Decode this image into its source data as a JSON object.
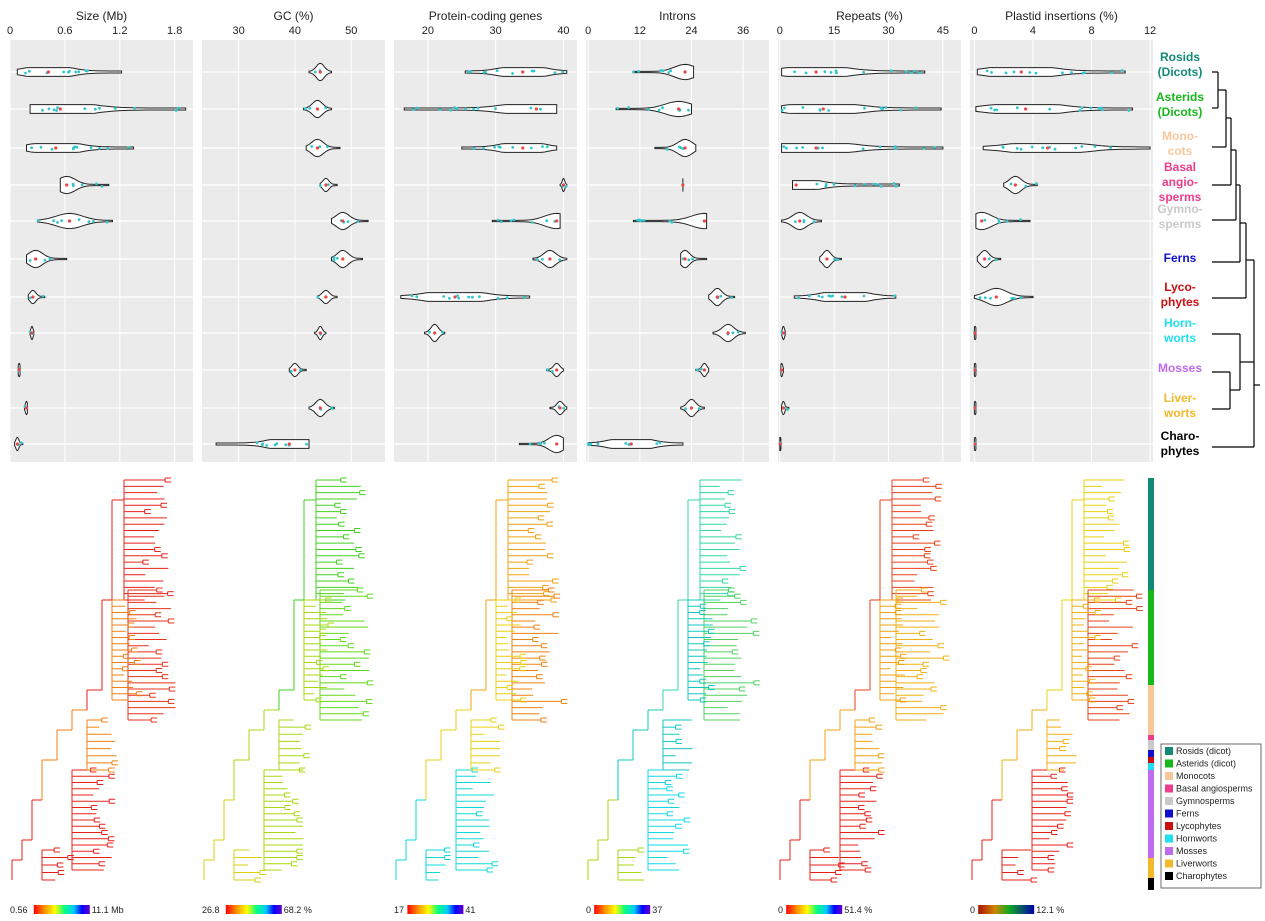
{
  "figure": {
    "groups": [
      {
        "name": "Rosids (Dicots)",
        "lines": [
          "Rosids",
          "(Dicots)"
        ],
        "color": "#128A75"
      },
      {
        "name": "Asterids (Dicots)",
        "lines": [
          "Asterids",
          "(Dicots)"
        ],
        "color": "#16B81B"
      },
      {
        "name": "Monocots",
        "lines": [
          "Mono-",
          "cots"
        ],
        "color": "#F7C79C"
      },
      {
        "name": "Basal angiosperms",
        "lines": [
          "Basal",
          "angio-",
          "sperms"
        ],
        "color": "#EE3C8A"
      },
      {
        "name": "Gymnosperms",
        "lines": [
          "Gymno-",
          "sperms"
        ],
        "color": "#C9C9C9"
      },
      {
        "name": "Ferns",
        "lines": [
          "Ferns"
        ],
        "color": "#1010CC"
      },
      {
        "name": "Lycophytes",
        "lines": [
          "Lyco-",
          "phytes"
        ],
        "color": "#CC1010"
      },
      {
        "name": "Hornworts",
        "lines": [
          "Horn-",
          "worts"
        ],
        "color": "#1EE0EE"
      },
      {
        "name": "Mosses",
        "lines": [
          "Mosses"
        ],
        "color": "#C06AEE"
      },
      {
        "name": "Liverworts",
        "lines": [
          "Liver-",
          "worts"
        ],
        "color": "#F2B92A"
      },
      {
        "name": "Charophytes",
        "lines": [
          "Charo-",
          "phytes"
        ],
        "color": "#000000"
      }
    ],
    "legend": [
      {
        "label": "Rosids (dicot)",
        "color": "#128A75"
      },
      {
        "label": "Asterids (dicot)",
        "color": "#16B81B"
      },
      {
        "label": "Monocots",
        "color": "#F7C79C"
      },
      {
        "label": "Basal angiosperms",
        "color": "#EE3C8A"
      },
      {
        "label": "Gymnosperms",
        "color": "#C9C9C9"
      },
      {
        "label": "Ferns",
        "color": "#1010CC"
      },
      {
        "label": "Lycophytes",
        "color": "#CC1010"
      },
      {
        "label": "Hornworts",
        "color": "#1EE0EE"
      },
      {
        "label": "Mosses",
        "color": "#C06AEE"
      },
      {
        "label": "Liverworts",
        "color": "#F2B92A"
      },
      {
        "label": "Charophytes",
        "color": "#000000"
      }
    ],
    "colorbars": [
      {
        "min_label": "0.56",
        "max_label": "11.1 Mb",
        "scheme": "rainbow"
      },
      {
        "min_label": "26.8",
        "max_label": "68.2 %",
        "scheme": "rainbow"
      },
      {
        "min_label": "17",
        "max_label": "41",
        "scheme": "rainbow"
      },
      {
        "min_label": "0",
        "max_label": "37",
        "scheme": "rainbow"
      },
      {
        "min_label": "0",
        "max_label": "51.4 %",
        "scheme": "rainbow"
      },
      {
        "min_label": "0",
        "max_label": "12.1 %",
        "scheme": "brown-green-blue"
      }
    ]
  },
  "chart_data": [
    {
      "type": "violin",
      "title": "Size (Mb)",
      "xlim": [
        0,
        2.0
      ],
      "ticks": [
        0,
        0.6,
        1.2,
        1.8
      ],
      "tick_labels": [
        "0",
        "0.6",
        "1.2",
        "1.8"
      ],
      "rows": [
        {
          "min": 0.08,
          "max": 1.22,
          "center": 0.42
        },
        {
          "min": 0.22,
          "max": 1.92,
          "center": 0.55
        },
        {
          "min": 0.18,
          "max": 1.35,
          "center": 0.5
        },
        {
          "min": 0.55,
          "max": 1.08,
          "center": 0.62
        },
        {
          "min": 0.3,
          "max": 1.12,
          "center": 0.65
        },
        {
          "min": 0.18,
          "max": 0.62,
          "center": 0.28
        },
        {
          "min": 0.2,
          "max": 0.38,
          "center": 0.25
        },
        {
          "min": 0.22,
          "max": 0.26,
          "center": 0.24
        },
        {
          "min": 0.09,
          "max": 0.11,
          "center": 0.1
        },
        {
          "min": 0.16,
          "max": 0.19,
          "center": 0.18
        },
        {
          "min": 0.05,
          "max": 0.14,
          "center": 0.08
        }
      ]
    },
    {
      "type": "violin",
      "title": "GC (%)",
      "xlim": [
        23.5,
        56
      ],
      "ticks": [
        30,
        40,
        50
      ],
      "tick_labels": [
        "30",
        "40",
        "50"
      ],
      "rows": [
        {
          "min": 42.5,
          "max": 46.5,
          "center": 44.5
        },
        {
          "min": 41.5,
          "max": 46.5,
          "center": 44.0
        },
        {
          "min": 42.0,
          "max": 48.0,
          "center": 44.0
        },
        {
          "min": 44.5,
          "max": 47.5,
          "center": 45.5
        },
        {
          "min": 46.5,
          "max": 53.0,
          "center": 48.5
        },
        {
          "min": 46.5,
          "max": 52.0,
          "center": 48.5
        },
        {
          "min": 44.0,
          "max": 47.5,
          "center": 45.5
        },
        {
          "min": 43.5,
          "max": 45.5,
          "center": 44.5
        },
        {
          "min": 39.0,
          "max": 42.0,
          "center": 40.0
        },
        {
          "min": 42.5,
          "max": 47.0,
          "center": 44.5
        },
        {
          "min": 26.0,
          "max": 42.5,
          "center": 39.0
        }
      ]
    },
    {
      "type": "violin",
      "title": "Protein-coding genes",
      "xlim": [
        15,
        42
      ],
      "ticks": [
        20,
        30,
        40
      ],
      "tick_labels": [
        "20",
        "30",
        "40"
      ],
      "rows": [
        {
          "min": 25.5,
          "max": 40.5,
          "center": 34.0
        },
        {
          "min": 16.5,
          "max": 39.0,
          "center": 36.0
        },
        {
          "min": 25.0,
          "max": 39.0,
          "center": 34.0
        },
        {
          "min": 39.5,
          "max": 40.5,
          "center": 40.0
        },
        {
          "min": 29.5,
          "max": 39.5,
          "center": 39.0
        },
        {
          "min": 35.5,
          "max": 40.5,
          "center": 38.0
        },
        {
          "min": 16.0,
          "max": 35.0,
          "center": 24.0
        },
        {
          "min": 19.5,
          "max": 22.5,
          "center": 21.0
        },
        {
          "min": 37.5,
          "max": 40.0,
          "center": 39.0
        },
        {
          "min": 38.0,
          "max": 40.5,
          "center": 39.5
        },
        {
          "min": 33.5,
          "max": 40.0,
          "center": 39.0
        }
      ]
    },
    {
      "type": "violin",
      "title": "Introns",
      "xlim": [
        -0.5,
        42
      ],
      "ticks": [
        0,
        12,
        24,
        36
      ],
      "tick_labels": [
        "0",
        "12",
        "24",
        "36"
      ],
      "rows": [
        {
          "min": 10.5,
          "max": 24.5,
          "center": 22.5
        },
        {
          "min": 6.5,
          "max": 24.0,
          "center": 21.0
        },
        {
          "min": 15.5,
          "max": 25.0,
          "center": 22.5
        },
        {
          "min": 22.0,
          "max": 22.0,
          "center": 22.0
        },
        {
          "min": 10.5,
          "max": 27.5,
          "center": 27.0
        },
        {
          "min": 21.5,
          "max": 27.5,
          "center": 22.5
        },
        {
          "min": 28.0,
          "max": 34.0,
          "center": 30.0
        },
        {
          "min": 29.0,
          "max": 36.5,
          "center": 32.5
        },
        {
          "min": 25.0,
          "max": 28.0,
          "center": 27.0
        },
        {
          "min": 21.5,
          "max": 27.0,
          "center": 24.0
        },
        {
          "min": 0.0,
          "max": 22.0,
          "center": 10.0
        }
      ]
    },
    {
      "type": "violin",
      "title": "Repeats (%)",
      "xlim": [
        -0.5,
        50
      ],
      "ticks": [
        0,
        15,
        30,
        45
      ],
      "tick_labels": [
        "0",
        "15",
        "30",
        "45"
      ],
      "rows": [
        {
          "min": 0.5,
          "max": 40.0,
          "center": 10.0
        },
        {
          "min": 0.5,
          "max": 44.5,
          "center": 12.0
        },
        {
          "min": 0.5,
          "max": 45.0,
          "center": 10.0
        },
        {
          "min": 3.5,
          "max": 33.0,
          "center": 4.5
        },
        {
          "min": 0.5,
          "max": 11.5,
          "center": 5.5
        },
        {
          "min": 11.0,
          "max": 17.0,
          "center": 13.0
        },
        {
          "min": 4.0,
          "max": 32.0,
          "center": 18.0
        },
        {
          "min": 0.5,
          "max": 1.5,
          "center": 1.0
        },
        {
          "min": 0.3,
          "max": 1.0,
          "center": 0.5
        },
        {
          "min": 0.5,
          "max": 2.5,
          "center": 1.0
        },
        {
          "min": 0.0,
          "max": 0.3,
          "center": 0.1
        }
      ]
    },
    {
      "type": "violin",
      "title": "Plastid insertions (%)",
      "xlim": [
        -0.3,
        12.2
      ],
      "ticks": [
        0,
        4,
        8,
        12
      ],
      "tick_labels": [
        "0",
        "4",
        "8",
        "12"
      ],
      "rows": [
        {
          "min": 0.2,
          "max": 10.3,
          "center": 3.2
        },
        {
          "min": 0.1,
          "max": 10.8,
          "center": 3.5
        },
        {
          "min": 0.6,
          "max": 12.0,
          "center": 5.0
        },
        {
          "min": 2.0,
          "max": 4.3,
          "center": 2.8
        },
        {
          "min": 0.1,
          "max": 3.8,
          "center": 0.5
        },
        {
          "min": 0.2,
          "max": 1.8,
          "center": 0.7
        },
        {
          "min": 0.0,
          "max": 4.0,
          "center": 1.5
        },
        {
          "min": 0.0,
          "max": 0.1,
          "center": 0.05
        },
        {
          "min": 0.0,
          "max": 0.1,
          "center": 0.05
        },
        {
          "min": 0.0,
          "max": 0.1,
          "center": 0.05
        },
        {
          "min": 0.0,
          "max": 0.1,
          "center": 0.05
        }
      ]
    }
  ]
}
